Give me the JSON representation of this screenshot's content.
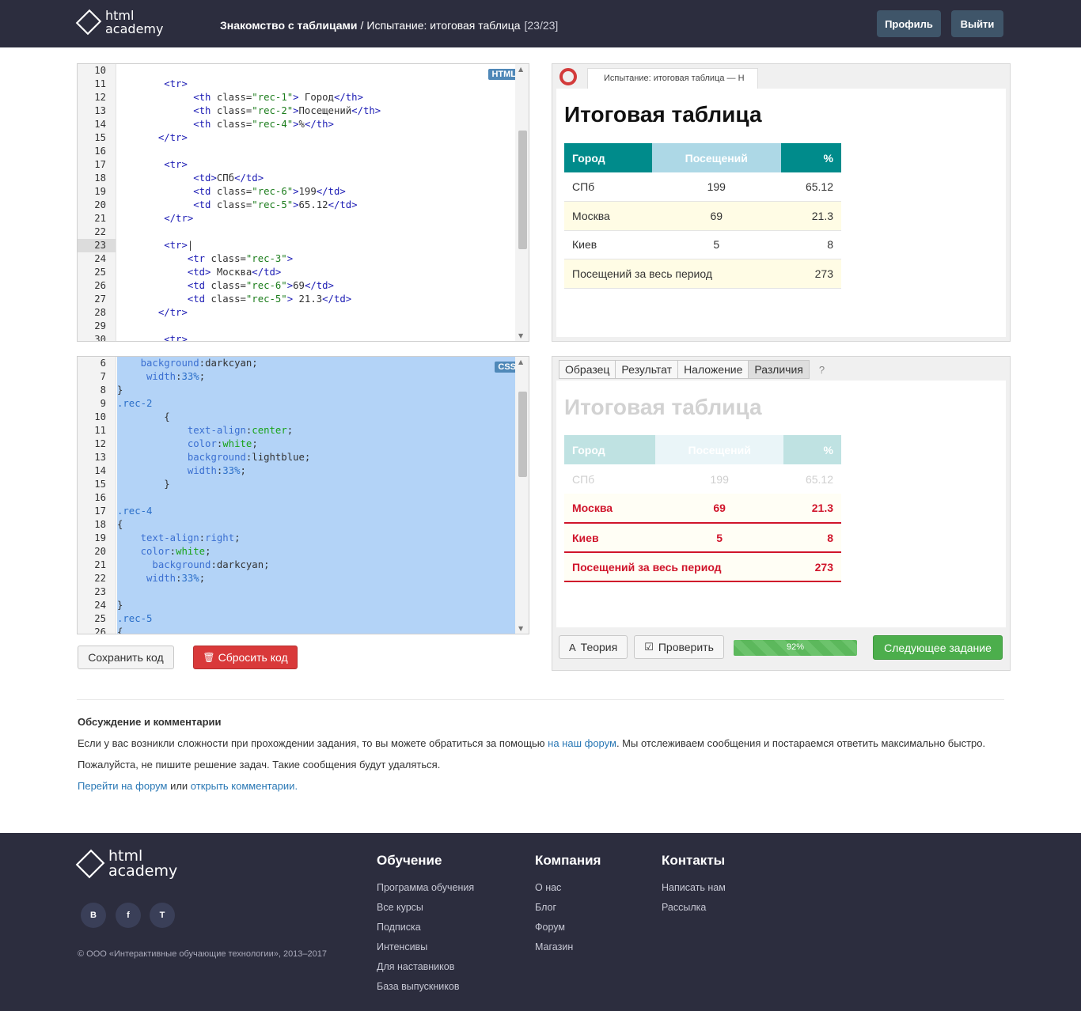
{
  "header": {
    "logo_line1": "html",
    "logo_line2": "academy",
    "breadcrumb_course": "Знакомство с таблицами",
    "breadcrumb_sep": "/",
    "breadcrumb_task": "Испытание: итоговая таблица",
    "breadcrumb_count": "[23/23]",
    "profile_label": "Профиль",
    "logout_label": "Выйти"
  },
  "html_editor": {
    "badge": "HTML",
    "active_line": "23",
    "lines": [
      {
        "n": "10",
        "html": ""
      },
      {
        "n": "11",
        "html": "        <span class='tag'>&lt;tr&gt;</span>"
      },
      {
        "n": "12",
        "html": "             <span class='tag'>&lt;th</span> <span class='attr'>class=</span><span class='str'>\"rec-1\"</span><span class='tag'>&gt;</span> Город<span class='tag'>&lt;/th&gt;</span>"
      },
      {
        "n": "13",
        "html": "             <span class='tag'>&lt;th</span> <span class='attr'>class=</span><span class='str'>\"rec-2\"</span><span class='tag'>&gt;</span>Посещений<span class='tag'>&lt;/th&gt;</span>"
      },
      {
        "n": "14",
        "html": "             <span class='tag'>&lt;th</span> <span class='attr'>class=</span><span class='str'>\"rec-4\"</span><span class='tag'>&gt;</span>%<span class='tag'>&lt;/th&gt;</span>"
      },
      {
        "n": "15",
        "html": "       <span class='tag'>&lt;/tr&gt;</span>"
      },
      {
        "n": "16",
        "html": ""
      },
      {
        "n": "17",
        "html": "        <span class='tag'>&lt;tr&gt;</span>"
      },
      {
        "n": "18",
        "html": "             <span class='tag'>&lt;td&gt;</span>СПб<span class='tag'>&lt;/td&gt;</span>"
      },
      {
        "n": "19",
        "html": "             <span class='tag'>&lt;td</span> <span class='attr'>class=</span><span class='str'>\"rec-6\"</span><span class='tag'>&gt;</span>199<span class='tag'>&lt;/td&gt;</span>"
      },
      {
        "n": "20",
        "html": "             <span class='tag'>&lt;td</span> <span class='attr'>class=</span><span class='str'>\"rec-5\"</span><span class='tag'>&gt;</span>65.12<span class='tag'>&lt;/td&gt;</span>"
      },
      {
        "n": "21",
        "html": "        <span class='tag'>&lt;/tr&gt;</span>"
      },
      {
        "n": "22",
        "html": ""
      },
      {
        "n": "23",
        "html": "        <span class='tag'>&lt;tr&gt;</span>|"
      },
      {
        "n": "24",
        "html": "            <span class='tag'>&lt;tr</span> <span class='attr'>class=</span><span class='str'>\"rec-3\"</span><span class='tag'>&gt;</span>"
      },
      {
        "n": "25",
        "html": "            <span class='tag'>&lt;td&gt;</span> Москва<span class='tag'>&lt;/td&gt;</span>"
      },
      {
        "n": "26",
        "html": "            <span class='tag'>&lt;td</span> <span class='attr'>class=</span><span class='str'>\"rec-6\"</span><span class='tag'>&gt;</span>69<span class='tag'>&lt;/td&gt;</span>"
      },
      {
        "n": "27",
        "html": "            <span class='tag'>&lt;td</span> <span class='attr'>class=</span><span class='str'>\"rec-5\"</span><span class='tag'>&gt;</span> 21.3<span class='tag'>&lt;/td&gt;</span>"
      },
      {
        "n": "28",
        "html": "       <span class='tag'>&lt;/tr&gt;</span>"
      },
      {
        "n": "29",
        "html": ""
      },
      {
        "n": "30",
        "html": "        <span class='tag'>&lt;tr&gt;</span>"
      }
    ]
  },
  "css_editor": {
    "badge": "CSS",
    "lines": [
      {
        "n": "6",
        "html": "    <span class='prop'>background</span>:darkcyan;"
      },
      {
        "n": "7",
        "html": "     <span class='prop'>width</span>:<span class='sel'>33%</span>;"
      },
      {
        "n": "8",
        "html": "}"
      },
      {
        "n": "9",
        "html": "<span class='sel'>.rec-2</span>"
      },
      {
        "n": "10",
        "html": "        {"
      },
      {
        "n": "11",
        "html": "            <span class='prop'>text-align</span>:<span class='cval'>center</span>;"
      },
      {
        "n": "12",
        "html": "            <span class='prop'>color</span>:<span class='cval'>white</span>;"
      },
      {
        "n": "13",
        "html": "            <span class='prop'>background</span>:lightblue;"
      },
      {
        "n": "14",
        "html": "            <span class='prop'>width</span>:<span class='sel'>33%</span>;"
      },
      {
        "n": "15",
        "html": "        }"
      },
      {
        "n": "16",
        "html": ""
      },
      {
        "n": "17",
        "html": "<span class='sel'>.rec-4</span>"
      },
      {
        "n": "18",
        "html": "{"
      },
      {
        "n": "19",
        "html": "    <span class='prop'>text-align</span>:<span class='prop'>right</span>;"
      },
      {
        "n": "20",
        "html": "    <span class='prop'>color</span>:<span class='cval'>white</span>;"
      },
      {
        "n": "21",
        "html": "      <span class='prop'>background</span>:darkcyan;"
      },
      {
        "n": "22",
        "html": "     <span class='prop'>width</span>:<span class='sel'>33%</span>;"
      },
      {
        "n": "23",
        "html": ""
      },
      {
        "n": "24",
        "html": "}"
      },
      {
        "n": "25",
        "html": "<span class='sel'>.rec-5</span>"
      },
      {
        "n": "26",
        "html": "{"
      }
    ]
  },
  "editor_buttons": {
    "save_label": "Сохранить код",
    "reset_label": "Сбросить код",
    "reset_icon": "🗑"
  },
  "preview": {
    "browser_tab": "Испытание: итоговая таблица — H",
    "title": "Итоговая таблица",
    "headers": [
      "Город",
      "Посещений",
      "%"
    ],
    "rows": [
      [
        "СПб",
        "199",
        "65.12"
      ],
      [
        "Москва",
        "69",
        "21.3"
      ],
      [
        "Киев",
        "5",
        "8"
      ],
      [
        "Посещений за весь период",
        "",
        "273"
      ]
    ]
  },
  "compare": {
    "tabs": [
      "Образец",
      "Результат",
      "Наложение",
      "Различия"
    ],
    "help": "?",
    "title": "Итоговая таблица",
    "headers": [
      "Город",
      "Посещений",
      "%"
    ],
    "rows": [
      [
        "СПб",
        "199",
        "65.12"
      ],
      [
        "Москва",
        "69",
        "21.3"
      ],
      [
        "Киев",
        "5",
        "8"
      ],
      [
        "Посещений за весь период",
        "",
        "273"
      ]
    ],
    "theory_label": "Теория",
    "check_label": "Проверить",
    "progress_label": "92%",
    "progress_value": 0.92,
    "next_label": "Следующее задание"
  },
  "discussion": {
    "title": "Обсуждение и комментарии",
    "p1_before": "Если у вас возникли сложности при прохождении задания, то вы можете обратиться за помощью ",
    "p1_link": "на наш форум",
    "p1_after": ". Мы отслеживаем сообщения и постараемся ответить максимально быстро.",
    "p2": "Пожалуйста, не пишите решение задач. Такие сообщения будут удаляться.",
    "p3_link1": "Перейти на форум",
    "p3_mid": " или ",
    "p3_link2": "открыть комментарии",
    "p3_end": "."
  },
  "footer": {
    "logo_line1": "html",
    "logo_line2": "academy",
    "social": [
      "В",
      "f",
      "T"
    ],
    "copyright": "© ООО «Интерактивные обучающие технологии», 2013–2017",
    "cols": [
      {
        "title": "Обучение",
        "items": [
          "Программа обучения",
          "Все курсы",
          "Подписка",
          "Интенсивы",
          "Для наставников",
          "База выпускников"
        ]
      },
      {
        "title": "Компания",
        "items": [
          "О нас",
          "Блог",
          "Форум",
          "Магазин"
        ]
      },
      {
        "title": "Контакты",
        "items": [
          "Написать нам",
          "Рассылка"
        ]
      }
    ]
  }
}
